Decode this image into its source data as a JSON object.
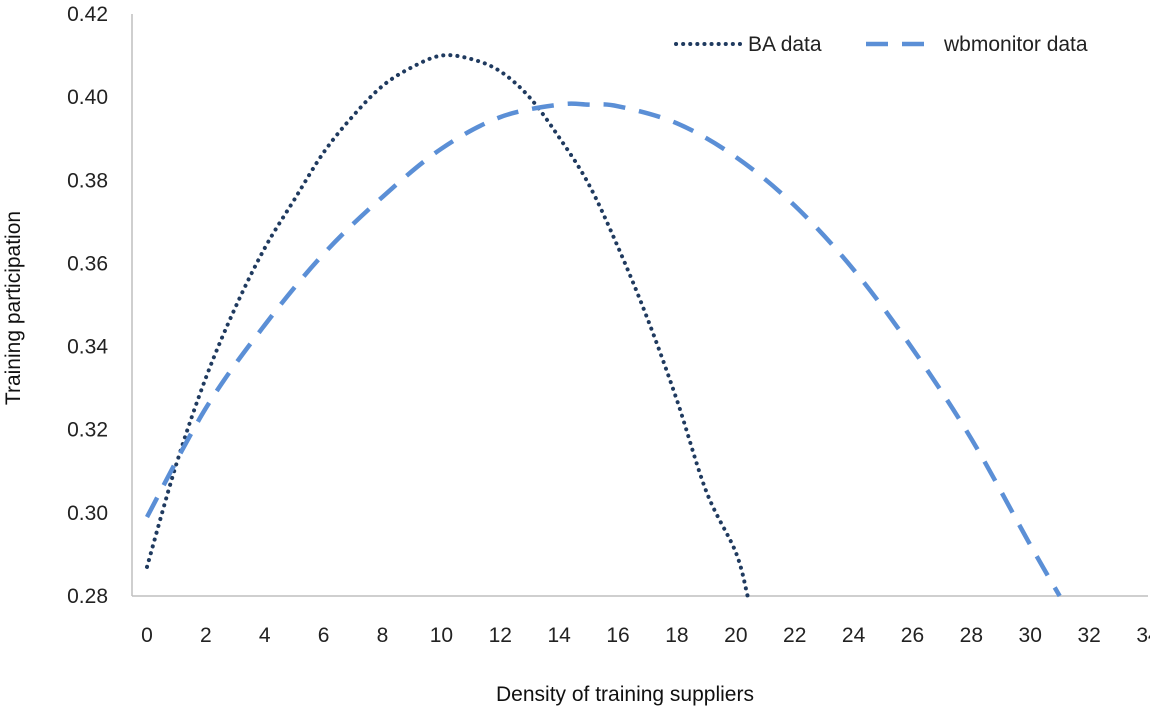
{
  "chart_data": {
    "type": "line",
    "title": "",
    "xlabel": "Density of training suppliers",
    "ylabel": "Training participation",
    "xlim": [
      0,
      34
    ],
    "ylim": [
      0.28,
      0.42
    ],
    "x_ticks": [
      "0",
      "2",
      "4",
      "6",
      "8",
      "10",
      "12",
      "14",
      "16",
      "18",
      "20",
      "22",
      "24",
      "26",
      "28",
      "30",
      "32",
      "34"
    ],
    "y_ticks": [
      "0.28",
      "0.30",
      "0.32",
      "0.34",
      "0.36",
      "0.38",
      "0.40",
      "0.42"
    ],
    "grid": false,
    "legend_position": "top-right",
    "series": [
      {
        "name": "BA data",
        "style": "dotted",
        "color": "#1f3a5f",
        "x": [
          0,
          1,
          2,
          3,
          4,
          5,
          6,
          7,
          8,
          9,
          10,
          11,
          12,
          13,
          14,
          15,
          16,
          17,
          18,
          19,
          20,
          20.4
        ],
        "y": [
          0.287,
          0.3118,
          0.3325,
          0.3494,
          0.3637,
          0.3753,
          0.3867,
          0.3955,
          0.4027,
          0.4072,
          0.41,
          0.4092,
          0.4062,
          0.3999,
          0.3903,
          0.3791,
          0.3639,
          0.3467,
          0.3271,
          0.3051,
          0.2905,
          0.28
        ]
      },
      {
        "name": "wbmonitor data",
        "style": "dashed",
        "color": "#5b8fd6",
        "x": [
          0,
          2,
          4,
          6,
          8,
          10,
          12,
          14,
          15,
          16,
          18,
          20,
          22,
          24,
          26,
          28,
          30,
          31
        ],
        "y": [
          0.299,
          0.3252,
          0.3452,
          0.3623,
          0.376,
          0.3876,
          0.3952,
          0.3982,
          0.3982,
          0.3978,
          0.3937,
          0.3856,
          0.3739,
          0.3585,
          0.3395,
          0.3178,
          0.2923,
          0.28
        ]
      }
    ]
  }
}
